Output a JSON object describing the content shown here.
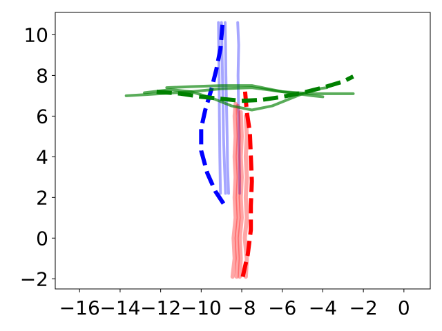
{
  "chart_data": {
    "type": "line",
    "title": "",
    "xlabel": "",
    "ylabel": "",
    "xlim": [
      -17.2,
      1.3
    ],
    "ylim": [
      -2.5,
      11.1
    ],
    "grid": false,
    "xticks": [
      -16,
      -14,
      -12,
      -10,
      -8,
      -6,
      -4,
      -2,
      0
    ],
    "yticks": [
      -2,
      0,
      2,
      4,
      6,
      8,
      10
    ],
    "xtick_labels": [
      "−16",
      "−14",
      "−12",
      "−10",
      "−8",
      "−6",
      "−4",
      "−2",
      "0"
    ],
    "ytick_labels": [
      "−2",
      "0",
      "2",
      "4",
      "6",
      "8",
      "10"
    ],
    "series": [
      {
        "color": "#0000ff",
        "style": "solid",
        "alpha": 0.35,
        "width": 4,
        "points": [
          [
            -8.8,
            2.2
          ],
          [
            -8.85,
            3.5
          ],
          [
            -8.9,
            5
          ],
          [
            -8.92,
            6.5
          ],
          [
            -8.95,
            8
          ],
          [
            -8.98,
            9.5
          ],
          [
            -9.0,
            10.6
          ]
        ]
      },
      {
        "color": "#0000ff",
        "style": "solid",
        "alpha": 0.35,
        "width": 4,
        "points": [
          [
            -8.65,
            2.2
          ],
          [
            -8.7,
            3.5
          ],
          [
            -8.72,
            5
          ],
          [
            -8.75,
            6.5
          ],
          [
            -8.78,
            8
          ],
          [
            -8.8,
            9.5
          ],
          [
            -8.82,
            10.6
          ]
        ]
      },
      {
        "color": "#0000ff",
        "style": "solid",
        "alpha": 0.35,
        "width": 4,
        "points": [
          [
            -9.05,
            2.2
          ],
          [
            -9.08,
            4
          ],
          [
            -9.1,
            6
          ],
          [
            -9.12,
            8
          ],
          [
            -9.15,
            10.6
          ]
        ]
      },
      {
        "color": "#0000ff",
        "style": "solid",
        "alpha": 0.35,
        "width": 4,
        "points": [
          [
            -8.1,
            2.2
          ],
          [
            -8.12,
            4
          ],
          [
            -8.15,
            6
          ],
          [
            -8.18,
            8
          ],
          [
            -8.15,
            9.5
          ],
          [
            -8.2,
            10.6
          ]
        ]
      },
      {
        "color": "#0000ff",
        "style": "dashed",
        "alpha": 1.0,
        "width": 6,
        "points": [
          [
            -8.9,
            1.7
          ],
          [
            -9.3,
            2.3
          ],
          [
            -9.7,
            3.2
          ],
          [
            -10.0,
            4.3
          ],
          [
            -10.0,
            5.4
          ],
          [
            -9.8,
            6.3
          ],
          [
            -9.5,
            7.3
          ],
          [
            -9.25,
            8.3
          ],
          [
            -9.05,
            9.3
          ],
          [
            -8.95,
            10.5
          ]
        ]
      },
      {
        "color": "#ff0000",
        "style": "solid",
        "alpha": 0.35,
        "width": 6,
        "points": [
          [
            -8.45,
            -1.9
          ],
          [
            -8.35,
            -1
          ],
          [
            -8.4,
            0
          ],
          [
            -8.3,
            1
          ],
          [
            -8.35,
            2
          ],
          [
            -8.3,
            3
          ],
          [
            -8.35,
            4
          ],
          [
            -8.3,
            5
          ],
          [
            -8.35,
            6
          ],
          [
            -8.3,
            6.6
          ]
        ]
      },
      {
        "color": "#ff0000",
        "style": "solid",
        "alpha": 0.35,
        "width": 6,
        "points": [
          [
            -7.8,
            -1.9
          ],
          [
            -7.75,
            -1
          ],
          [
            -7.85,
            0
          ],
          [
            -7.75,
            1
          ],
          [
            -7.8,
            2
          ],
          [
            -7.75,
            3
          ],
          [
            -7.8,
            4
          ],
          [
            -7.75,
            5
          ],
          [
            -7.8,
            6
          ]
        ]
      },
      {
        "color": "#ff0000",
        "style": "solid",
        "alpha": 0.35,
        "width": 6,
        "points": [
          [
            -8.1,
            -1.9
          ],
          [
            -8.05,
            -1
          ],
          [
            -8.1,
            0
          ],
          [
            -8.0,
            1
          ],
          [
            -8.05,
            2
          ],
          [
            -8.0,
            3
          ],
          [
            -8.05,
            4
          ],
          [
            -8.0,
            5
          ],
          [
            -8.05,
            6.2
          ]
        ]
      },
      {
        "color": "#ff0000",
        "style": "solid",
        "alpha": 0.35,
        "width": 6,
        "points": [
          [
            -8.25,
            -1.9
          ],
          [
            -8.2,
            -1
          ],
          [
            -8.25,
            0
          ],
          [
            -8.15,
            1
          ],
          [
            -8.2,
            2
          ],
          [
            -8.15,
            3
          ],
          [
            -8.2,
            4
          ],
          [
            -8.15,
            5
          ],
          [
            -8.2,
            6.5
          ]
        ]
      },
      {
        "color": "#ff0000",
        "style": "dashed",
        "alpha": 1.0,
        "width": 6,
        "points": [
          [
            -7.95,
            -1.9
          ],
          [
            -7.7,
            -0.8
          ],
          [
            -7.55,
            0.4
          ],
          [
            -7.55,
            1.6
          ],
          [
            -7.5,
            2.8
          ],
          [
            -7.55,
            4.0
          ],
          [
            -7.6,
            5.2
          ],
          [
            -7.75,
            6.2
          ],
          [
            -7.85,
            7.4
          ]
        ]
      },
      {
        "color": "#008000",
        "style": "solid",
        "alpha": 0.65,
        "width": 4,
        "points": [
          [
            -13.7,
            7.0
          ],
          [
            -12.0,
            7.1
          ],
          [
            -10.5,
            7.2
          ],
          [
            -9.0,
            7.35
          ],
          [
            -7.5,
            7.4
          ],
          [
            -6.0,
            7.2
          ],
          [
            -4.5,
            7.0
          ],
          [
            -4.0,
            6.95
          ]
        ]
      },
      {
        "color": "#008000",
        "style": "solid",
        "alpha": 0.65,
        "width": 4,
        "points": [
          [
            -11.7,
            7.4
          ],
          [
            -10.5,
            7.45
          ],
          [
            -9.0,
            7.5
          ],
          [
            -7.5,
            7.5
          ],
          [
            -6.0,
            7.2
          ],
          [
            -4.5,
            7.1
          ],
          [
            -2.5,
            7.1
          ]
        ]
      },
      {
        "color": "#008000",
        "style": "solid",
        "alpha": 0.65,
        "width": 4,
        "points": [
          [
            -12.8,
            7.15
          ],
          [
            -11.5,
            7.3
          ],
          [
            -10.5,
            7.2
          ],
          [
            -9.5,
            6.9
          ],
          [
            -8.5,
            6.5
          ],
          [
            -7.5,
            6.3
          ],
          [
            -6.5,
            6.5
          ],
          [
            -5.5,
            6.9
          ],
          [
            -4.5,
            7.3
          ],
          [
            -3.8,
            7.4
          ]
        ]
      },
      {
        "color": "#008000",
        "style": "dashed",
        "alpha": 1.0,
        "width": 6,
        "points": [
          [
            -12.2,
            7.2
          ],
          [
            -11.0,
            7.1
          ],
          [
            -10.0,
            6.95
          ],
          [
            -9.0,
            6.85
          ],
          [
            -8.0,
            6.75
          ],
          [
            -7.0,
            6.8
          ],
          [
            -6.0,
            6.95
          ],
          [
            -5.0,
            7.15
          ],
          [
            -4.0,
            7.4
          ],
          [
            -3.0,
            7.7
          ],
          [
            -2.5,
            7.95
          ]
        ]
      }
    ]
  }
}
